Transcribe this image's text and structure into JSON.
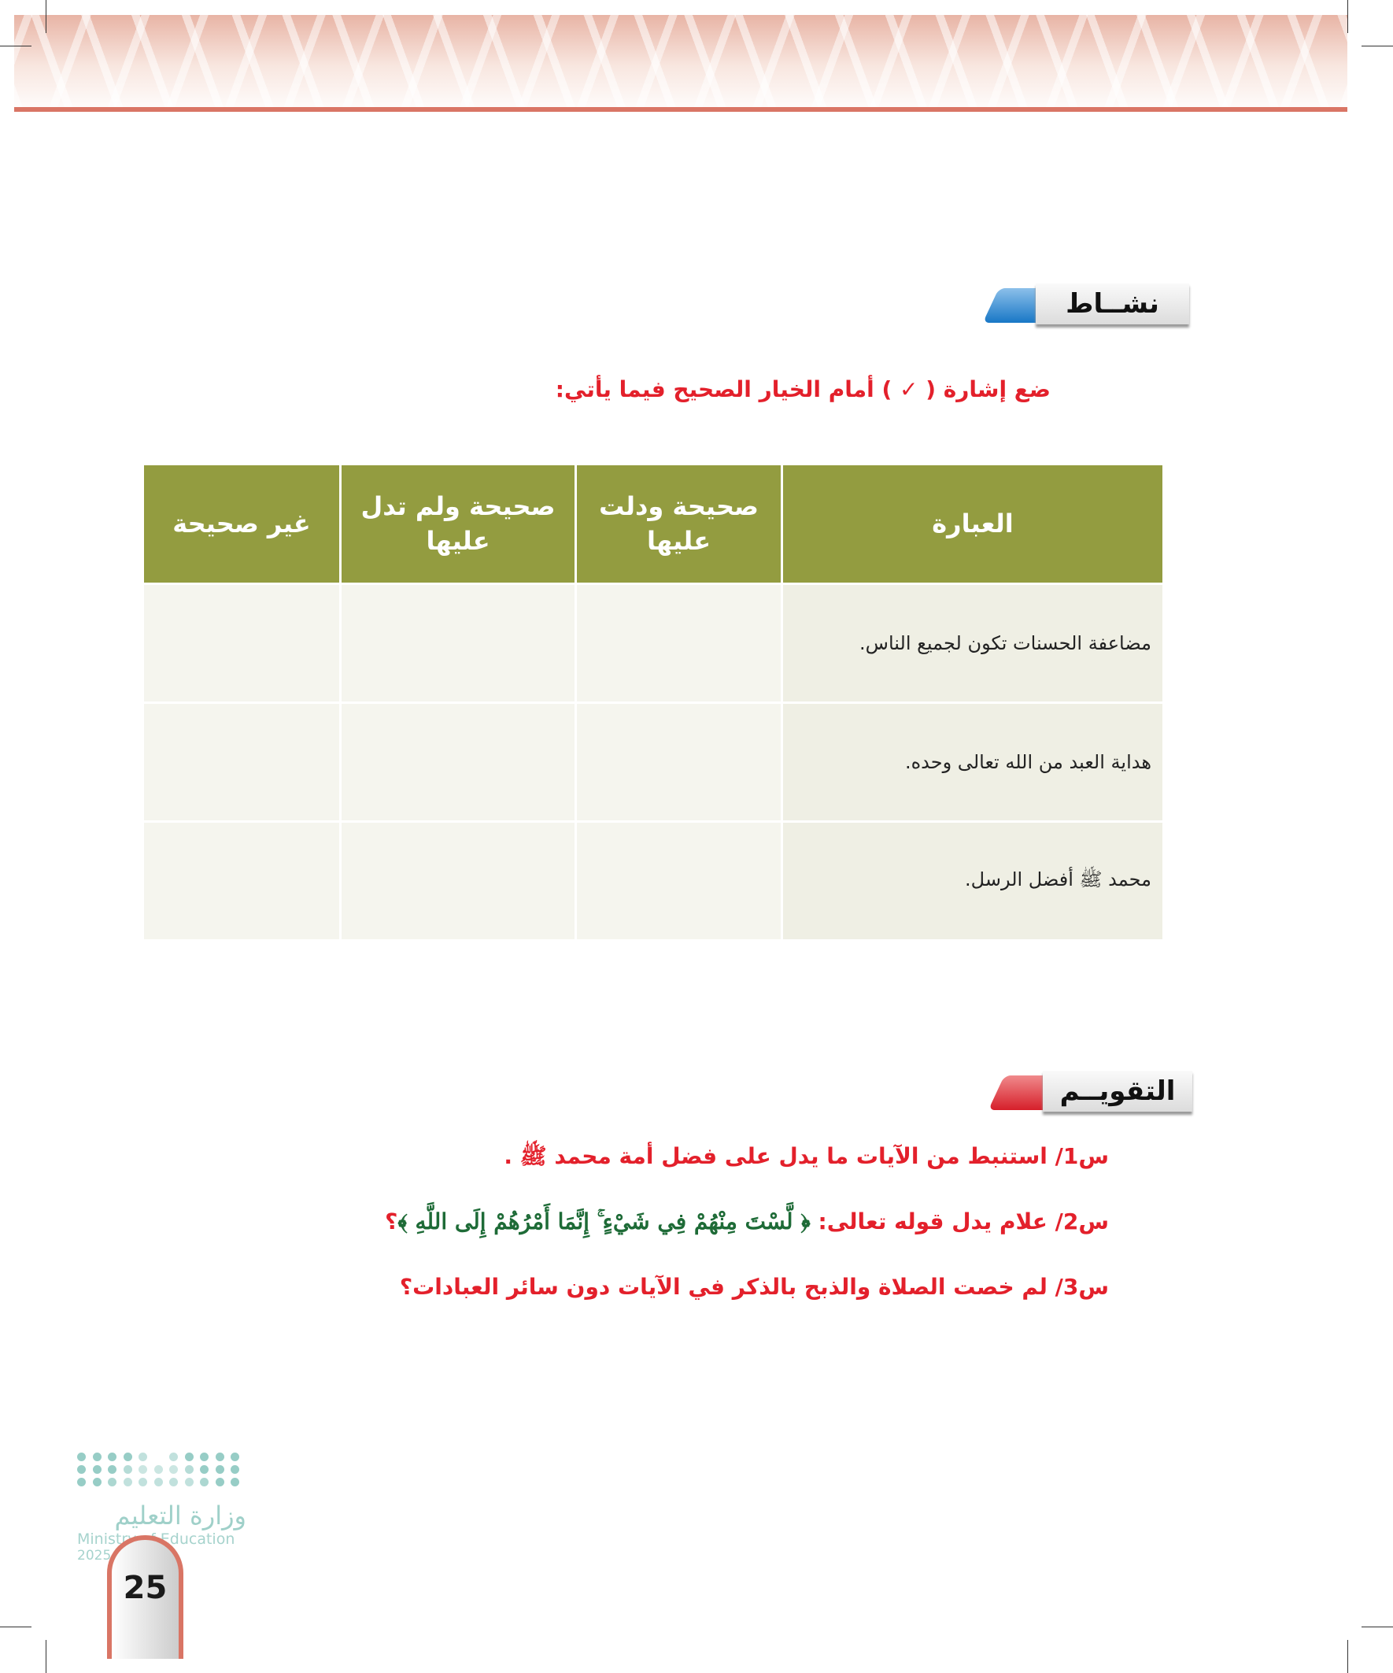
{
  "activity_tab": {
    "label": "نشــاط",
    "accent": "#3a8fd6"
  },
  "instruction": "ضع إشارة ( ✓ ) أمام الخيار الصحيح فيما يأتي:",
  "table": {
    "headers": [
      "العبارة",
      "صحيحة ودلت عليها",
      "صحيحة ولم تدل عليها",
      "غير صحيحة"
    ],
    "rows": [
      [
        "مضاعفة الحسنات تكون لجميع الناس.",
        "",
        "",
        ""
      ],
      [
        "هداية العبد من الله تعالى وحده.",
        "",
        "",
        ""
      ],
      [
        "محمد ﷺ أفضل الرسل.",
        "",
        "",
        ""
      ]
    ],
    "header_color": "#939c40"
  },
  "evaluation_tab": {
    "label": "التقويــم",
    "accent": "#e03a3e"
  },
  "questions": [
    {
      "text": "س1/ استنبط من الآيات ما يدل على فضل أمة محمد ﷺ ."
    },
    {
      "text": "س2/ علام يدل قوله تعالى: ",
      "verse": "﴿ لَّسْتَ مِنْهُمْ فِي شَيْءٍ ۚ إِنَّمَا أَمْرُهُمْ إِلَى اللَّهِ ﴾",
      "end": "؟"
    },
    {
      "text": "س3/ لم خصت الصلاة والذبح بالذكر في الآيات دون سائر العبادات؟"
    }
  ],
  "logo": {
    "arabic": "وزارة التعليم",
    "english": "Ministry of Education",
    "year": "2025 - 1447"
  },
  "page_number": "25",
  "text_color": "#e3202b"
}
